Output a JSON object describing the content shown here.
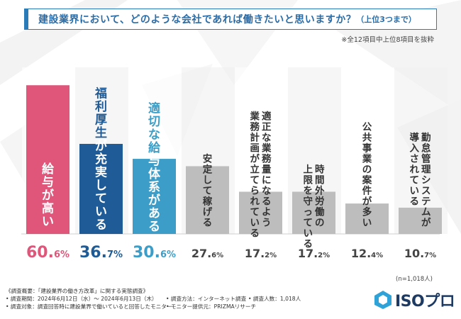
{
  "title": {
    "main": "建設業界において、どのような会社であれば働きたいと思いますか？",
    "sub": "（上位3つまで）"
  },
  "note": "※全12項目中上位8項目を抜粋",
  "sample_note": "(n=1,018人)",
  "colors": {
    "pink": "#e0557a",
    "navy": "#1f5b96",
    "blue": "#3c9ec8",
    "gray": "#bdbdbd",
    "title_border": "#2b7bb9"
  },
  "chart_data": {
    "type": "bar",
    "unit": "%",
    "ylim": [
      0,
      65
    ],
    "categories": [
      "給与が高い",
      "福利厚生が充実している",
      "適切な給与体系がある",
      "安定して稼げる",
      "適正な業務量になるよう業務計画が立てられている",
      "時間外労働の上限を守っている",
      "公共事業の案件が多い",
      "勤怠管理システムが導入されている"
    ],
    "values": [
      60.6,
      36.7,
      30.6,
      27.6,
      17.2,
      17.2,
      12.4,
      10.7
    ],
    "value_labels_int": [
      "60.",
      "36.",
      "30.",
      "27.",
      "17.",
      "17.",
      "12.",
      "10."
    ],
    "value_labels_dec": [
      "6%",
      "7%",
      "6%",
      "6%",
      "2%",
      "2%",
      "4%",
      "7%"
    ],
    "bar_colors": [
      "pink",
      "navy",
      "blue",
      "gray",
      "gray",
      "gray",
      "gray",
      "gray"
    ],
    "label_lines": [
      [
        "給与が高い"
      ],
      [
        "福利厚生が充実している"
      ],
      [
        "適切な給与体系がある"
      ],
      [
        "安定して稼げる"
      ],
      [
        "適正な業務量になるよう",
        "業務計画が立てられている"
      ],
      [
        "時間外労働の",
        "上限を守っている"
      ],
      [
        "公共事業の案件が多い"
      ],
      [
        "勤怠管理システムが",
        "導入されている"
      ]
    ]
  },
  "footer": {
    "line1": "《調査概要：「建設業界の働き方改革」に関する実態調査》",
    "period": "• 調査期間：2024年6月12日（水）～ 2024年6月13日（木）",
    "method": "• 調査方法：インターネット調査",
    "count": "• 調査人数：1,018人",
    "target": "• 調査対象：調査回答時に建設業界で働いていると回答したモニター",
    "provider": "• モニター提供元：PRIZMAリサーチ"
  },
  "logo": {
    "text": "ISOプロ",
    "icon": "hexagon-logo-icon"
  }
}
